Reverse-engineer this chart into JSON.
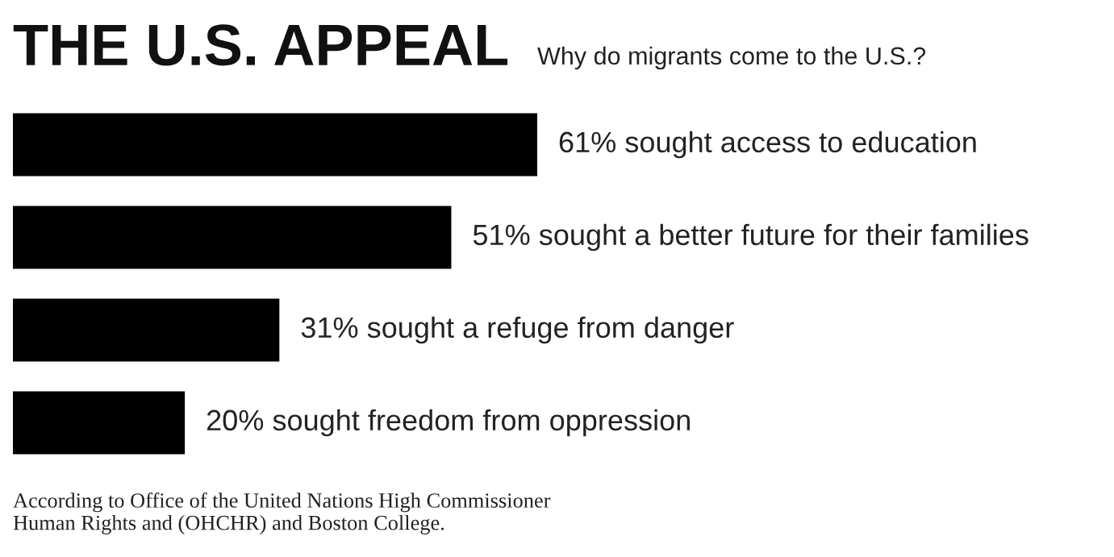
{
  "chart_data": {
    "type": "bar",
    "orientation": "horizontal",
    "title": "THE U.S. APPEAL",
    "subtitle": "Why do migrants come to the U.S.?",
    "categories": [
      null,
      null,
      null,
      null
    ],
    "values": [
      61,
      51,
      31,
      20
    ],
    "value_labels": [
      "61% sought access to education",
      "51% sought a better future for their families",
      "31% sought a refuge from danger",
      "20% sought freedom from oppression"
    ],
    "color": "#000000",
    "annotations": [
      "According to Office of the United Nations High Commissioner\nHuman Rights and (OHCHR) and Boston College."
    ],
    "tick_labels": false,
    "grid": false,
    "legend": false
  }
}
